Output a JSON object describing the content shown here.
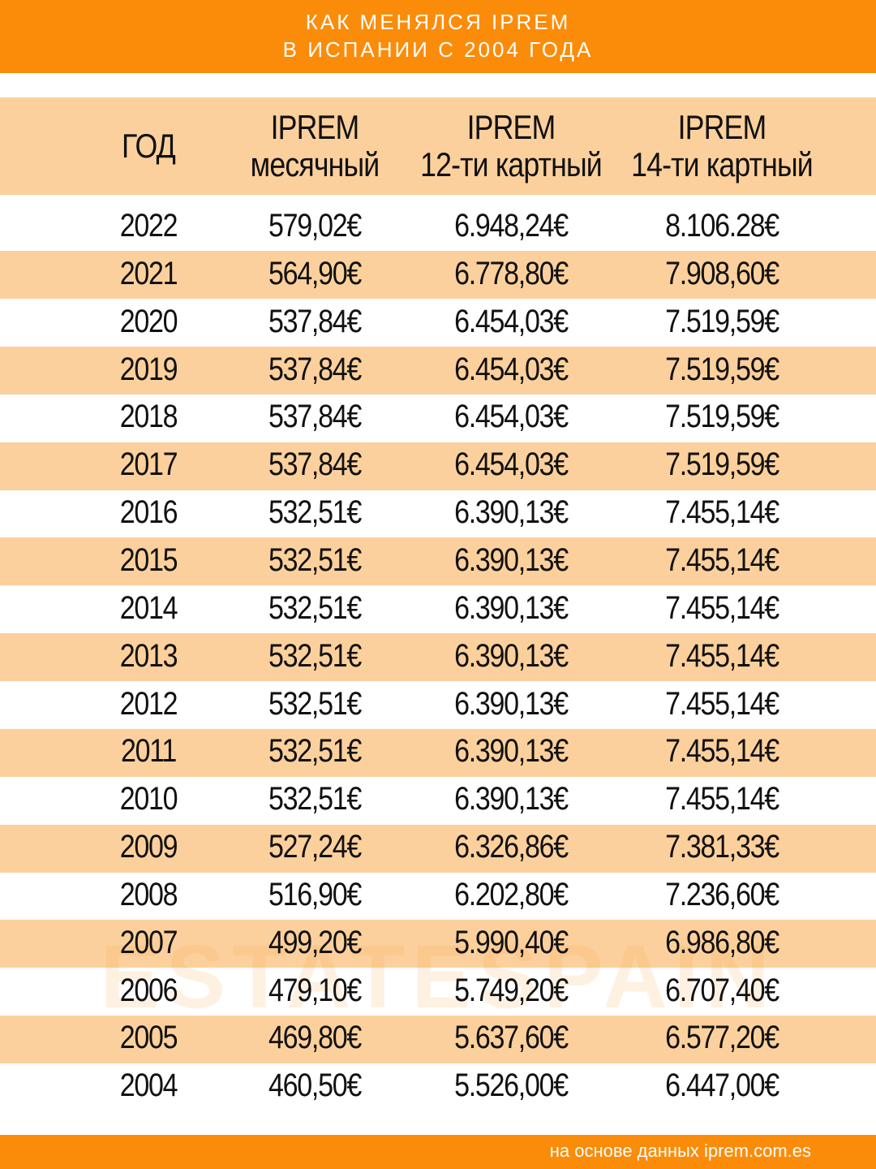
{
  "header": {
    "title": [
      "КАК МЕНЯЛСЯ IPREM",
      "В ИСПАНИИ С 2004 ГОДА"
    ]
  },
  "table": {
    "columns": [
      [
        "ГОД"
      ],
      [
        "IPREM",
        "месячный"
      ],
      [
        "IPREM",
        "12-ти картный"
      ],
      [
        "IPREM",
        "14-ти картный"
      ]
    ],
    "rows": [
      [
        "2022",
        "579,02€",
        "6.948,24€",
        "8.106.28€"
      ],
      [
        "2021",
        "564,90€",
        "6.778,80€",
        "7.908,60€"
      ],
      [
        "2020",
        "537,84€",
        "6.454,03€",
        "7.519,59€"
      ],
      [
        "2019",
        "537,84€",
        "6.454,03€",
        "7.519,59€"
      ],
      [
        "2018",
        "537,84€",
        "6.454,03€",
        "7.519,59€"
      ],
      [
        "2017",
        "537,84€",
        "6.454,03€",
        "7.519,59€"
      ],
      [
        "2016",
        "532,51€",
        "6.390,13€",
        "7.455,14€"
      ],
      [
        "2015",
        "532,51€",
        "6.390,13€",
        "7.455,14€"
      ],
      [
        "2014",
        "532,51€",
        "6.390,13€",
        "7.455,14€"
      ],
      [
        "2013",
        "532,51€",
        "6.390,13€",
        "7.455,14€"
      ],
      [
        "2012",
        "532,51€",
        "6.390,13€",
        "7.455,14€"
      ],
      [
        "2011",
        "532,51€",
        "6.390,13€",
        "7.455,14€"
      ],
      [
        "2010",
        "532,51€",
        "6.390,13€",
        "7.455,14€"
      ],
      [
        "2009",
        "527,24€",
        "6.326,86€",
        "7.381,33€"
      ],
      [
        "2008",
        "516,90€",
        "6.202,80€",
        "7.236,60€"
      ],
      [
        "2007",
        "499,20€",
        "5.990,40€",
        "6.986,80€"
      ],
      [
        "2006",
        "479,10€",
        "5.749,20€",
        "6.707,40€"
      ],
      [
        "2005",
        "469,80€",
        "5.637,60€",
        "6.577,20€"
      ],
      [
        "2004",
        "460,50€",
        "5.526,00€",
        "6.447,00€"
      ]
    ]
  },
  "watermark": "ESTATESPAIN",
  "footer": {
    "source": "на основе данных iprem.com.es"
  }
}
